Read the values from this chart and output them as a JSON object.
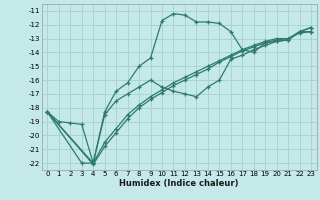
{
  "title": "",
  "xlabel": "Humidex (Indice chaleur)",
  "bg_color": "#c5e8e8",
  "grid_color": "#aad4d4",
  "line_color": "#2e7b6e",
  "xlim": [
    -0.5,
    23.5
  ],
  "ylim": [
    -22.5,
    -10.5
  ],
  "xticks": [
    0,
    1,
    2,
    3,
    4,
    5,
    6,
    7,
    8,
    9,
    10,
    11,
    12,
    13,
    14,
    15,
    16,
    17,
    18,
    19,
    20,
    21,
    22,
    23
  ],
  "yticks": [
    -11,
    -12,
    -13,
    -14,
    -15,
    -16,
    -17,
    -18,
    -19,
    -20,
    -21,
    -22
  ],
  "curves": [
    {
      "x": [
        0,
        1,
        2,
        3,
        4,
        5,
        6,
        7,
        8,
        9,
        10,
        11,
        12,
        13,
        14,
        15,
        16,
        17,
        18,
        19,
        20,
        21,
        22,
        23
      ],
      "y": [
        -18.3,
        -19.0,
        -19.1,
        -19.2,
        -22.0,
        -18.3,
        -16.8,
        -16.2,
        -15.0,
        -14.4,
        -11.7,
        -11.2,
        -11.3,
        -11.8,
        -11.8,
        -11.9,
        -12.5,
        -13.8,
        -14.0,
        -13.3,
        -13.2,
        -13.1,
        -12.5,
        -12.2
      ]
    },
    {
      "x": [
        0,
        3,
        4,
        5,
        6,
        7,
        8,
        9,
        10,
        11,
        12,
        13,
        14,
        15,
        16,
        17,
        18,
        19,
        20,
        21,
        22,
        23
      ],
      "y": [
        -18.3,
        -22.0,
        -22.0,
        -18.5,
        -17.5,
        -17.0,
        -16.5,
        -16.0,
        -16.5,
        -16.8,
        -17.0,
        -17.2,
        -16.5,
        -16.0,
        -14.5,
        -14.2,
        -13.8,
        -13.5,
        -13.2,
        -13.1,
        -12.5,
        -12.2
      ]
    },
    {
      "x": [
        0,
        4,
        5,
        6,
        7,
        8,
        9,
        10,
        11,
        12,
        13,
        14,
        15,
        16,
        17,
        18,
        19,
        20,
        21,
        22,
        23
      ],
      "y": [
        -18.3,
        -22.0,
        -20.5,
        -19.5,
        -18.5,
        -17.8,
        -17.2,
        -16.7,
        -16.2,
        -15.8,
        -15.4,
        -15.0,
        -14.6,
        -14.2,
        -13.8,
        -13.5,
        -13.2,
        -13.0,
        -13.0,
        -12.5,
        -12.5
      ]
    },
    {
      "x": [
        0,
        4,
        5,
        6,
        7,
        8,
        9,
        10,
        11,
        12,
        13,
        14,
        15,
        16,
        17,
        18,
        19,
        20,
        21,
        22,
        23
      ],
      "y": [
        -18.3,
        -22.1,
        -20.8,
        -19.8,
        -18.8,
        -18.0,
        -17.4,
        -16.9,
        -16.4,
        -16.0,
        -15.6,
        -15.2,
        -14.7,
        -14.3,
        -13.9,
        -13.6,
        -13.3,
        -13.1,
        -13.0,
        -12.6,
        -12.5
      ]
    }
  ]
}
